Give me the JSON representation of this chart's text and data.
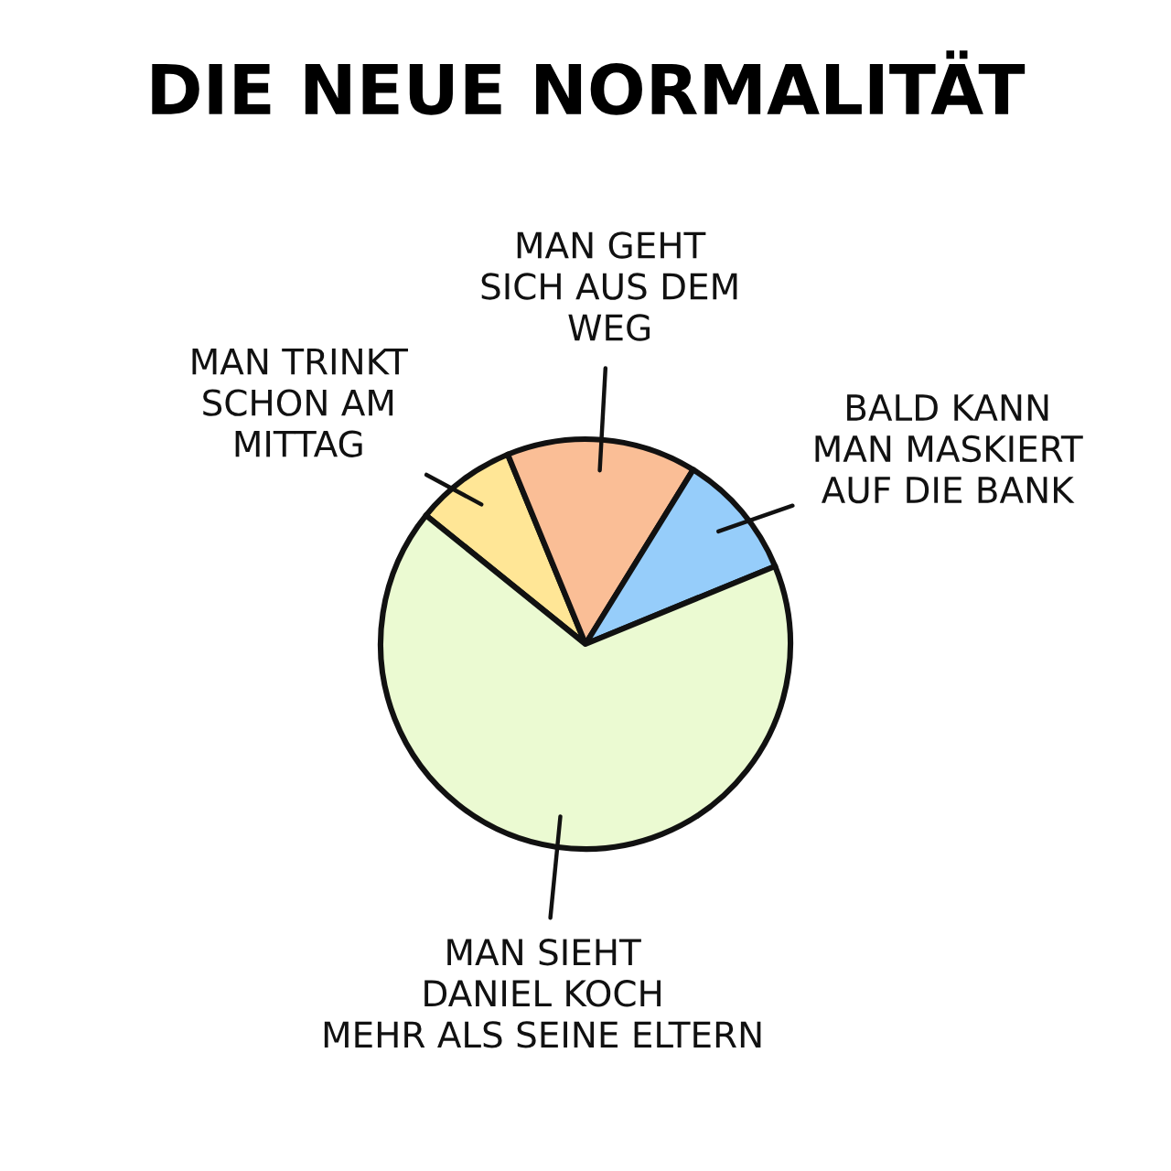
{
  "chart_data": {
    "type": "pie",
    "title": "DIE NEUE NORMALITÄT",
    "categories": [
      "MAN TRINKT\nSCHON AM\nMITTAG",
      "MAN GEHT\nSICH AUS DEM\nWEG",
      "BALD KANN\nMAN MASKIERT\nAUF DIE BANK",
      "MAN SIEHT\nDANIEL KOCH\nMEHR ALS SEINE ELTERN"
    ],
    "values": [
      8,
      15,
      10,
      67
    ],
    "colors": [
      "#ffe696",
      "#fabe96",
      "#96cdfa",
      "#ebfad2"
    ]
  }
}
